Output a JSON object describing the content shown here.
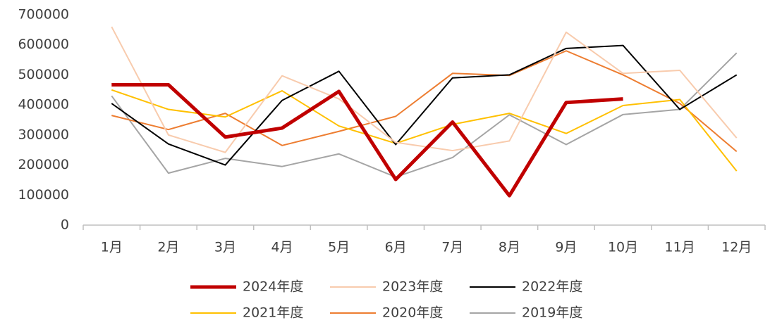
{
  "chart_data": {
    "type": "line",
    "categories": [
      "1月",
      "2月",
      "3月",
      "4月",
      "5月",
      "6月",
      "7月",
      "8月",
      "9月",
      "10月",
      "11月",
      "12月"
    ],
    "series": [
      {
        "name": "2024年度",
        "color": "#c00000",
        "values": [
          467000,
          467000,
          293000,
          323000,
          445000,
          152000,
          343000,
          98000,
          408000,
          420000,
          null,
          null
        ]
      },
      {
        "name": "2023年度",
        "color": "#f8cbad",
        "values": [
          660000,
          300000,
          242000,
          497000,
          420000,
          275000,
          248000,
          280000,
          642000,
          505000,
          515000,
          290000
        ]
      },
      {
        "name": "2022年度",
        "color": "#000000",
        "values": [
          405000,
          270000,
          200000,
          415000,
          512000,
          268000,
          490000,
          500000,
          588000,
          598000,
          385000,
          500000
        ]
      },
      {
        "name": "2021年度",
        "color": "#ffc000",
        "values": [
          450000,
          385000,
          360000,
          447000,
          330000,
          272000,
          335000,
          372000,
          305000,
          398000,
          418000,
          180000
        ]
      },
      {
        "name": "2020年度",
        "color": "#ed7d31",
        "values": [
          365000,
          318000,
          372000,
          265000,
          312000,
          362000,
          505000,
          498000,
          580000,
          500000,
          405000,
          245000
        ]
      },
      {
        "name": "2019年度",
        "color": "#a5a5a5",
        "values": [
          430000,
          173000,
          222000,
          195000,
          237000,
          160000,
          225000,
          367000,
          268000,
          368000,
          385000,
          573000
        ]
      }
    ],
    "ylim": [
      0,
      700000
    ],
    "yticks": [
      0,
      100000,
      200000,
      300000,
      400000,
      500000,
      600000,
      700000
    ],
    "grid": false
  }
}
